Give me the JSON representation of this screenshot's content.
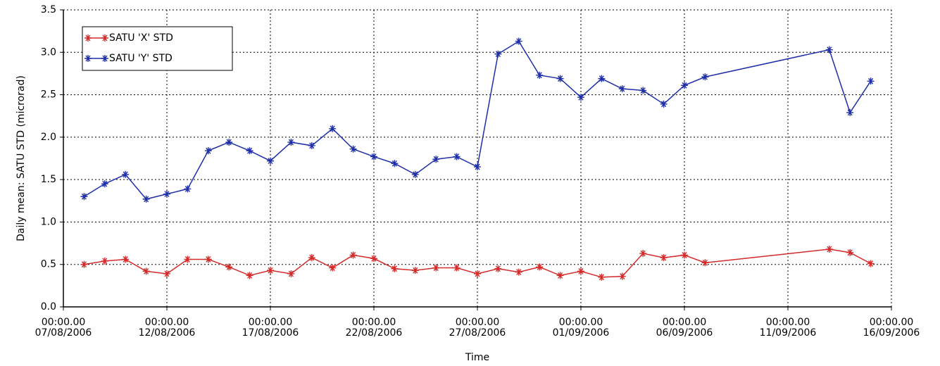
{
  "chart_data": {
    "type": "line",
    "x_label": "Time",
    "y_label": "Daily mean: SATU STD (microrad)",
    "x": [
      "08/08/2006",
      "09/08/2006",
      "10/08/2006",
      "11/08/2006",
      "12/08/2006",
      "13/08/2006",
      "14/08/2006",
      "15/08/2006",
      "16/08/2006",
      "17/08/2006",
      "18/08/2006",
      "19/08/2006",
      "20/08/2006",
      "21/08/2006",
      "22/08/2006",
      "23/08/2006",
      "24/08/2006",
      "25/08/2006",
      "26/08/2006",
      "27/08/2006",
      "28/08/2006",
      "29/08/2006",
      "30/08/2006",
      "31/08/2006",
      "01/09/2006",
      "02/09/2006",
      "03/09/2006",
      "04/09/2006",
      "05/09/2006",
      "06/09/2006",
      "07/09/2006",
      "13/09/2006",
      "14/09/2006",
      "15/09/2006"
    ],
    "series": [
      {
        "name": "SATU 'X' STD",
        "color": "#d42a2a",
        "values": [
          0.5,
          0.54,
          0.56,
          0.42,
          0.39,
          0.56,
          0.56,
          0.47,
          0.37,
          0.43,
          0.39,
          0.58,
          0.46,
          0.61,
          0.57,
          0.45,
          0.43,
          0.46,
          0.46,
          0.39,
          0.45,
          0.41,
          0.47,
          0.37,
          0.42,
          0.35,
          0.36,
          0.63,
          0.58,
          0.61,
          0.52,
          0.68,
          0.64,
          0.51
        ]
      },
      {
        "name": "SATU 'Y' STD",
        "color": "#1f2fa8",
        "values": [
          1.3,
          1.45,
          1.56,
          1.27,
          1.33,
          1.39,
          1.84,
          1.94,
          1.84,
          1.72,
          1.94,
          1.9,
          2.1,
          1.86,
          1.77,
          1.69,
          1.56,
          1.74,
          1.77,
          1.65,
          2.98,
          3.13,
          2.73,
          2.69,
          2.47,
          2.69,
          2.57,
          2.55,
          2.39,
          2.61,
          2.71,
          3.03,
          2.29,
          2.66
        ]
      }
    ],
    "xlim": [
      "07/08/2006",
      "16/09/2006"
    ],
    "xticks": [
      {
        "value": "07/08/2006",
        "label": "00:00.00\n07/08/2006"
      },
      {
        "value": "12/08/2006",
        "label": "00:00.00\n12/08/2006"
      },
      {
        "value": "17/08/2006",
        "label": "00:00.00\n17/08/2006"
      },
      {
        "value": "22/08/2006",
        "label": "00:00.00\n22/08/2006"
      },
      {
        "value": "27/08/2006",
        "label": "00:00.00\n27/08/2006"
      },
      {
        "value": "01/09/2006",
        "label": "00:00.00\n01/09/2006"
      },
      {
        "value": "06/09/2006",
        "label": "00:00.00\n06/09/2006"
      },
      {
        "value": "11/09/2006",
        "label": "00:00.00\n11/09/2006"
      },
      {
        "value": "16/09/2006",
        "label": "00:00.00\n16/09/2006"
      }
    ],
    "ylim": [
      0,
      3.5
    ],
    "yticks": [
      {
        "value": 0,
        "label": "0.0"
      },
      0.5,
      {
        "value": 1,
        "label": "1.0"
      },
      1.5,
      {
        "value": 2,
        "label": "2.0"
      },
      2.5,
      {
        "value": 3,
        "label": "3.0"
      },
      3.5
    ],
    "grid": true,
    "legend": "upper left"
  }
}
